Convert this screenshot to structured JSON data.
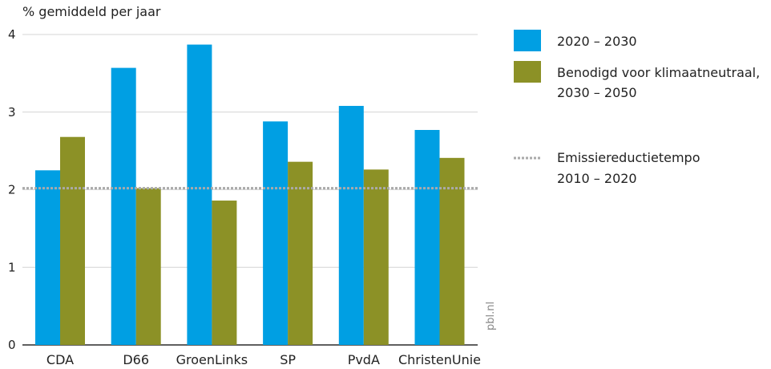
{
  "chart_data": {
    "type": "bar",
    "ylabel": "% gemiddeld per jaar",
    "ylim": [
      0,
      4
    ],
    "yticks": [
      0,
      1,
      2,
      3,
      4
    ],
    "categories": [
      "CDA",
      "D66",
      "GroenLinks",
      "SP",
      "PvdA",
      "ChristenUnie"
    ],
    "series": [
      {
        "name": "2020 – 2030",
        "color": "#009FE3",
        "values": [
          2.25,
          3.57,
          3.87,
          2.88,
          3.08,
          2.77
        ]
      },
      {
        "name_lines": [
          "Benodigd voor klimaatneutraal,",
          "2030 – 2050"
        ],
        "color": "#8C9126",
        "values": [
          2.68,
          2.02,
          1.86,
          2.36,
          2.26,
          2.41
        ]
      }
    ],
    "reference_line": {
      "value": 2.02,
      "style": "dotted",
      "color": "#AAAAAA",
      "label_lines": [
        "Emissiereductietempo",
        "2010 – 2020"
      ]
    },
    "grid": true,
    "legend_position": "right",
    "source": "pbl.nl"
  }
}
